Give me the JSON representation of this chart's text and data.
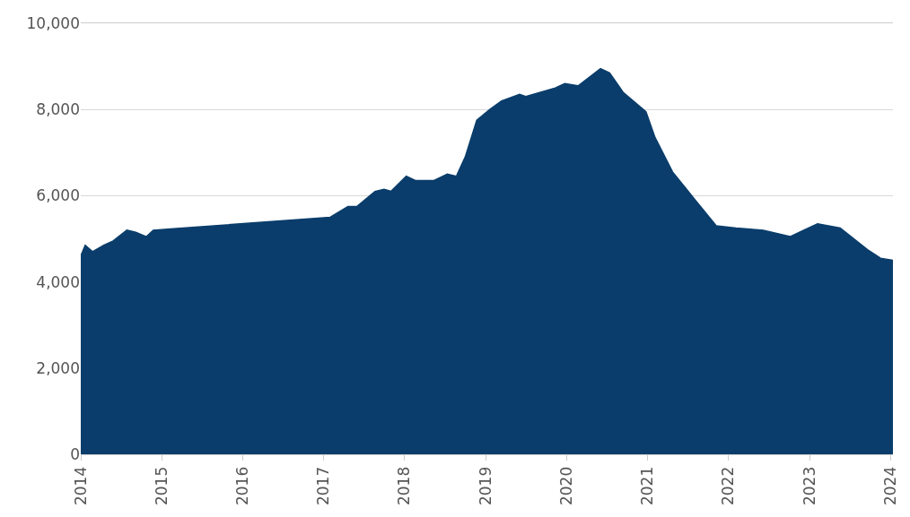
{
  "chart_data": {
    "type": "area",
    "color": "#0a3d6b",
    "x": [
      "2014-01-01",
      "2014-01-21",
      "2014-02-23",
      "2014-04-15",
      "2014-05-27",
      "2014-07-28",
      "2014-09-06",
      "2014-10-24",
      "2014-11-24",
      "2017-01-30",
      "2017-04-20",
      "2017-05-31",
      "2017-08-20",
      "2017-09-30",
      "2017-10-31",
      "2018-01-08",
      "2018-02-20",
      "2018-05-11",
      "2018-07-12",
      "2018-08-22",
      "2018-10-01",
      "2018-11-22",
      "2019-01-20",
      "2019-03-14",
      "2019-06-03",
      "2019-07-01",
      "2019-11-11",
      "2019-12-24",
      "2020-02-22",
      "2020-06-02",
      "2020-07-13",
      "2020-09-12",
      "2020-12-24",
      "2021-02-03",
      "2021-04-23",
      "2021-08-03",
      "2021-11-06",
      "2022-02-03",
      "2022-06-06",
      "2022-10-05",
      "2023-02-06",
      "2023-05-19",
      "2023-09-19",
      "2023-11-17",
      "2024-01-12"
    ],
    "values": [
      4600,
      4850,
      4700,
      4850,
      4950,
      5200,
      5150,
      5050,
      5200,
      5500,
      5750,
      5750,
      6100,
      6150,
      6100,
      6450,
      6350,
      6350,
      6500,
      6450,
      6900,
      7750,
      8000,
      8200,
      8350,
      8300,
      8500,
      8600,
      8550,
      8950,
      8850,
      8400,
      7950,
      7350,
      6550,
      5900,
      5300,
      5250,
      5200,
      5050,
      5350,
      5250,
      4750,
      4550,
      4500
    ],
    "xlim": [
      "2014-01-01",
      "2024-01-12"
    ],
    "xticks": [
      "2014",
      "2015",
      "2016",
      "2017",
      "2018",
      "2019",
      "2020",
      "2021",
      "2022",
      "2023",
      "2024"
    ],
    "ylim": [
      0,
      10000
    ],
    "yticks": [
      0,
      {
        "value": 2000,
        "label": "2,000"
      },
      {
        "value": 4000,
        "label": "4,000"
      },
      {
        "value": 6000,
        "label": "6,000"
      },
      {
        "value": 8000,
        "label": "8,000"
      },
      {
        "value": 10000,
        "label": "10,000"
      }
    ],
    "grid": "y",
    "legend": false
  }
}
